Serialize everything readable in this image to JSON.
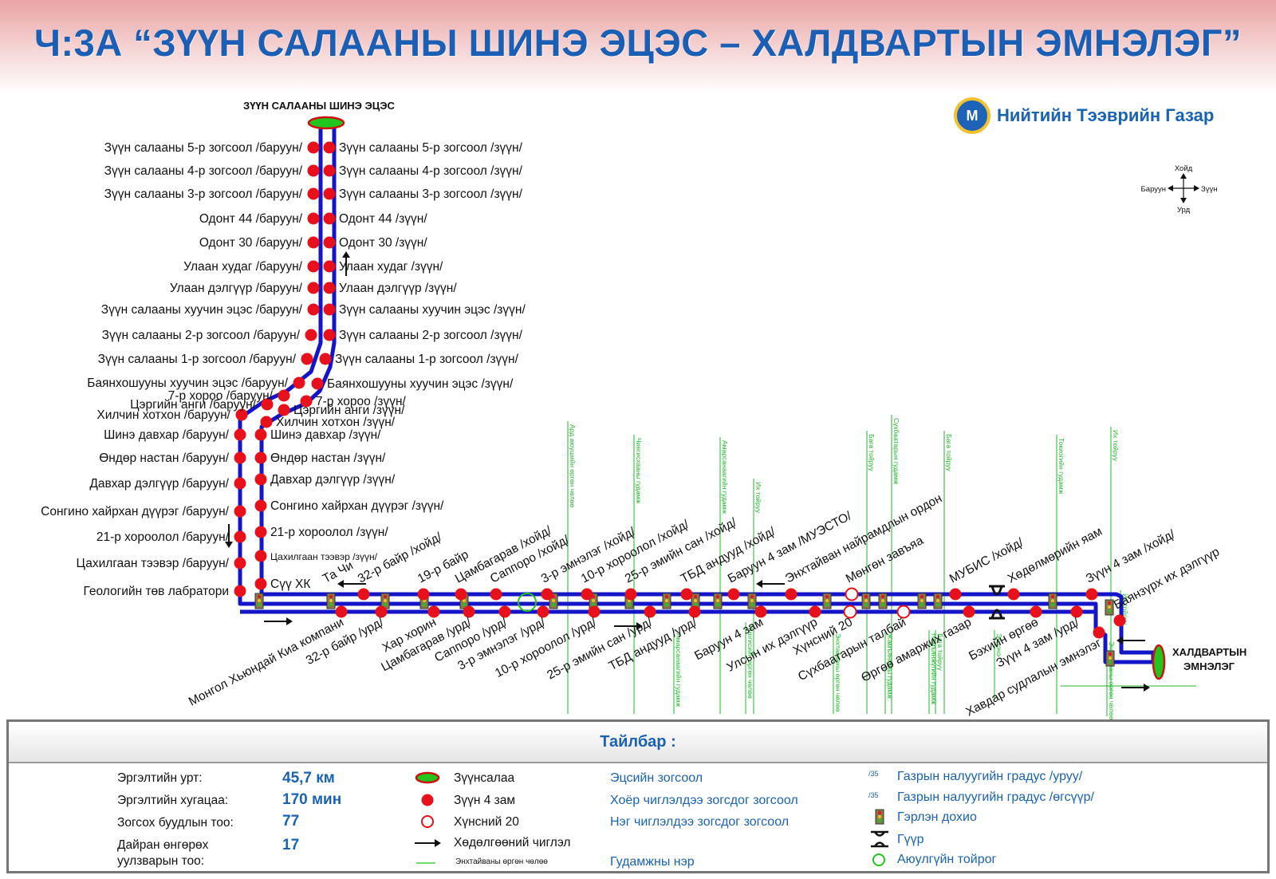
{
  "title": "Ч:3А “ЗҮҮН САЛААНЫ ШИНЭ ЭЦЭС – ХАЛДВАРТЫН ЭМНЭЛЭГ”",
  "organization": "Нийтийн Тээврийн Газар",
  "logo_glyph": "M",
  "compass": {
    "north": "Хойд",
    "south": "Урд",
    "west": "Баруун",
    "east": "Зүүн"
  },
  "terminals": {
    "start": "ЗҮҮН САЛААНЫ ШИНЭ ЭЦЭС",
    "end_line1": "ХАЛДВАРТЫН",
    "end_line2": "ЭМНЭЛЭГ"
  },
  "stops_west_column": [
    "Зүүн салааны 5-р зогсоол /баруун/",
    "Зүүн салааны 4-р зогсоол /баруун/",
    "Зүүн салааны 3-р зогсоол /баруун/",
    "Одонт 44 /баруун/",
    "Одонт 30 /баруун/",
    "Улаан худаг /баруун/",
    "Улаан дэлгүүр /баруун/",
    "Зүүн салааны хуучин эцэс /баруун/",
    "Зүүн салааны 2-р зогсоол /баруун/",
    "Зүүн салааны 1-р зогсоол /баруун/",
    "Баянхошууны хуучин эцэс /баруун/",
    "7-р хороо /баруун/",
    "Цэргийн анги /баруун/",
    "Хилчин хотхон /баруун/",
    "Шинэ давхар /баруун/",
    "Өндөр настан /баруун/",
    "Давхар дэлгүүр /баруун/",
    "Сонгино хайрхан дүүрэг /баруун/",
    "21-р хороолол /баруун/",
    "Цахилгаан тээвэр /баруун/",
    "Геологийн төв лабратори"
  ],
  "stops_east_column": [
    "Зүүн салааны 5-р зогсоол /зүүн/",
    "Зүүн салааны 4-р зогсоол /зүүн/",
    "Зүүн салааны 3-р зогсоол /зүүн/",
    "Одонт 44 /зүүн/",
    "Одонт 30 /зүүн/",
    "Улаан худаг /зүүн/",
    "Улаан дэлгүүр /зүүн/",
    "Зүүн салааны хуучин эцэс /зүүн/",
    "Зүүн салааны 2-р зогсоол /зүүн/",
    "Зүүн салааны 1-р зогсоол /зүүн/",
    "Баянхошууны хуучин эцэс /зүүн/",
    "7-р хороо /зүүн/",
    "Цэргийн анги /зүүн/",
    "Хилчин хотхон /зүүн/",
    "Шинэ давхар /зүүн/",
    "Өндөр настан /зүүн/",
    "Давхар дэлгүүр /зүүн/",
    "Сонгино хайрхан дүүрэг /зүүн/",
    "21-р хороолол /зүүн/",
    "Цахилгаан тээвэр /зүүн/",
    "Сүү ХК"
  ],
  "stops_north_row": [
    "Та Чи",
    "32-р байр /хойд/",
    "19-р байр",
    "Цамбагарав /хойд/",
    "Саппоро /хойд/",
    "3-р эмнэлэг /хойд/",
    "10-р хороолол /хойд/",
    "25-р эмийн сан /хойд/",
    "ТБД андууд /хойд/",
    "Баруун 4 зам /МУЭСТО/",
    "Энхтайван найрамдлын ордон",
    "Мөнгөн завъяа",
    "МУБИС /хойд/",
    "Хөдөлмөрийн яам",
    "Зүүн 4 зам /хойд/",
    "Баянзүрх их дэлгүүр"
  ],
  "stops_south_row": [
    "Монгол Хьюндай Киа компани",
    "32-р байр /урд/",
    "Хар хорин",
    "Цамбагарав /урд/",
    "Саппоро /урд/",
    "3-р эмнэлэг /урд/",
    "10-р хороолол /урд/",
    "25-р эмийн сан /урд/",
    "ТБД андууд /урд/",
    "Баруун 4 зам",
    "Улсын их дэлгүүр",
    "Хүнсний 20",
    "Сүхбаатарын талбай",
    "Өргөө амаржих газар",
    "Бэхийн өргөө",
    "Зүүн 4 зам /урд/",
    "Хавдар судлалын эмнэлэг"
  ],
  "streets": [
    "Ард аюушийн өргөн чөлөө",
    "Чингисхааны гудамж",
    "Амарсанаагийн гудамж",
    "Их тойруу",
    "Бага тойруу",
    "Сүхбаатарын гудамж",
    "Бага тойруу",
    "Токиогийн гудамж",
    "Их тойруу",
    "Амарсанаагийн гудамж",
    "Чингисийн өргөн чөлөө",
    "Энхтайваны өргөн чөлөө",
    "Жамъянгуны гудамж",
    "Намъянжүгийн гудамж",
    "Эрдэнэ",
    "Энхтайваны өргөн чөлөө",
    "Их тойруу",
    "Бага тойруу"
  ],
  "legend": {
    "heading": "Тайлбар :",
    "stats": [
      {
        "label": "Эргэлтийн урт:",
        "value": "45,7 км"
      },
      {
        "label": "Эргэлтийн хугацаа:",
        "value": "170 мин"
      },
      {
        "label": "Зогсох буудлын тоо:",
        "value": "77"
      },
      {
        "label": "Дайран өнгөрөх\nуулзварын тоо:",
        "value": "17"
      }
    ],
    "symbols_left": [
      "Зүүнсалаа",
      "Зүүн 4 зам",
      "Хүнсний 20",
      "Хөдөлгөөний чиглэл",
      "Энхтайваны өргөн чөлөө"
    ],
    "symbols_mid": [
      "Эцсийн зогсоол",
      "Хоёр чиглэлдээ зогсдог зогсоол",
      "Нэг чиглэлдээ зогсдог зогсоол",
      "Гудамжны нэр"
    ],
    "symbols_right": [
      "Газрын налуугийн градус /уруу/",
      "Газрын налуугийн градус /өгсүүр/",
      "Гэрлэн дохио",
      "Гүүр",
      "Аюулгүйн тойрог"
    ],
    "slope_sample": "/35",
    "colors": {
      "route": "#1414c8",
      "stop": "#e8101a",
      "terminal": "#22c41e",
      "street": "#1fb52a",
      "accent": "#1a62b2"
    }
  }
}
